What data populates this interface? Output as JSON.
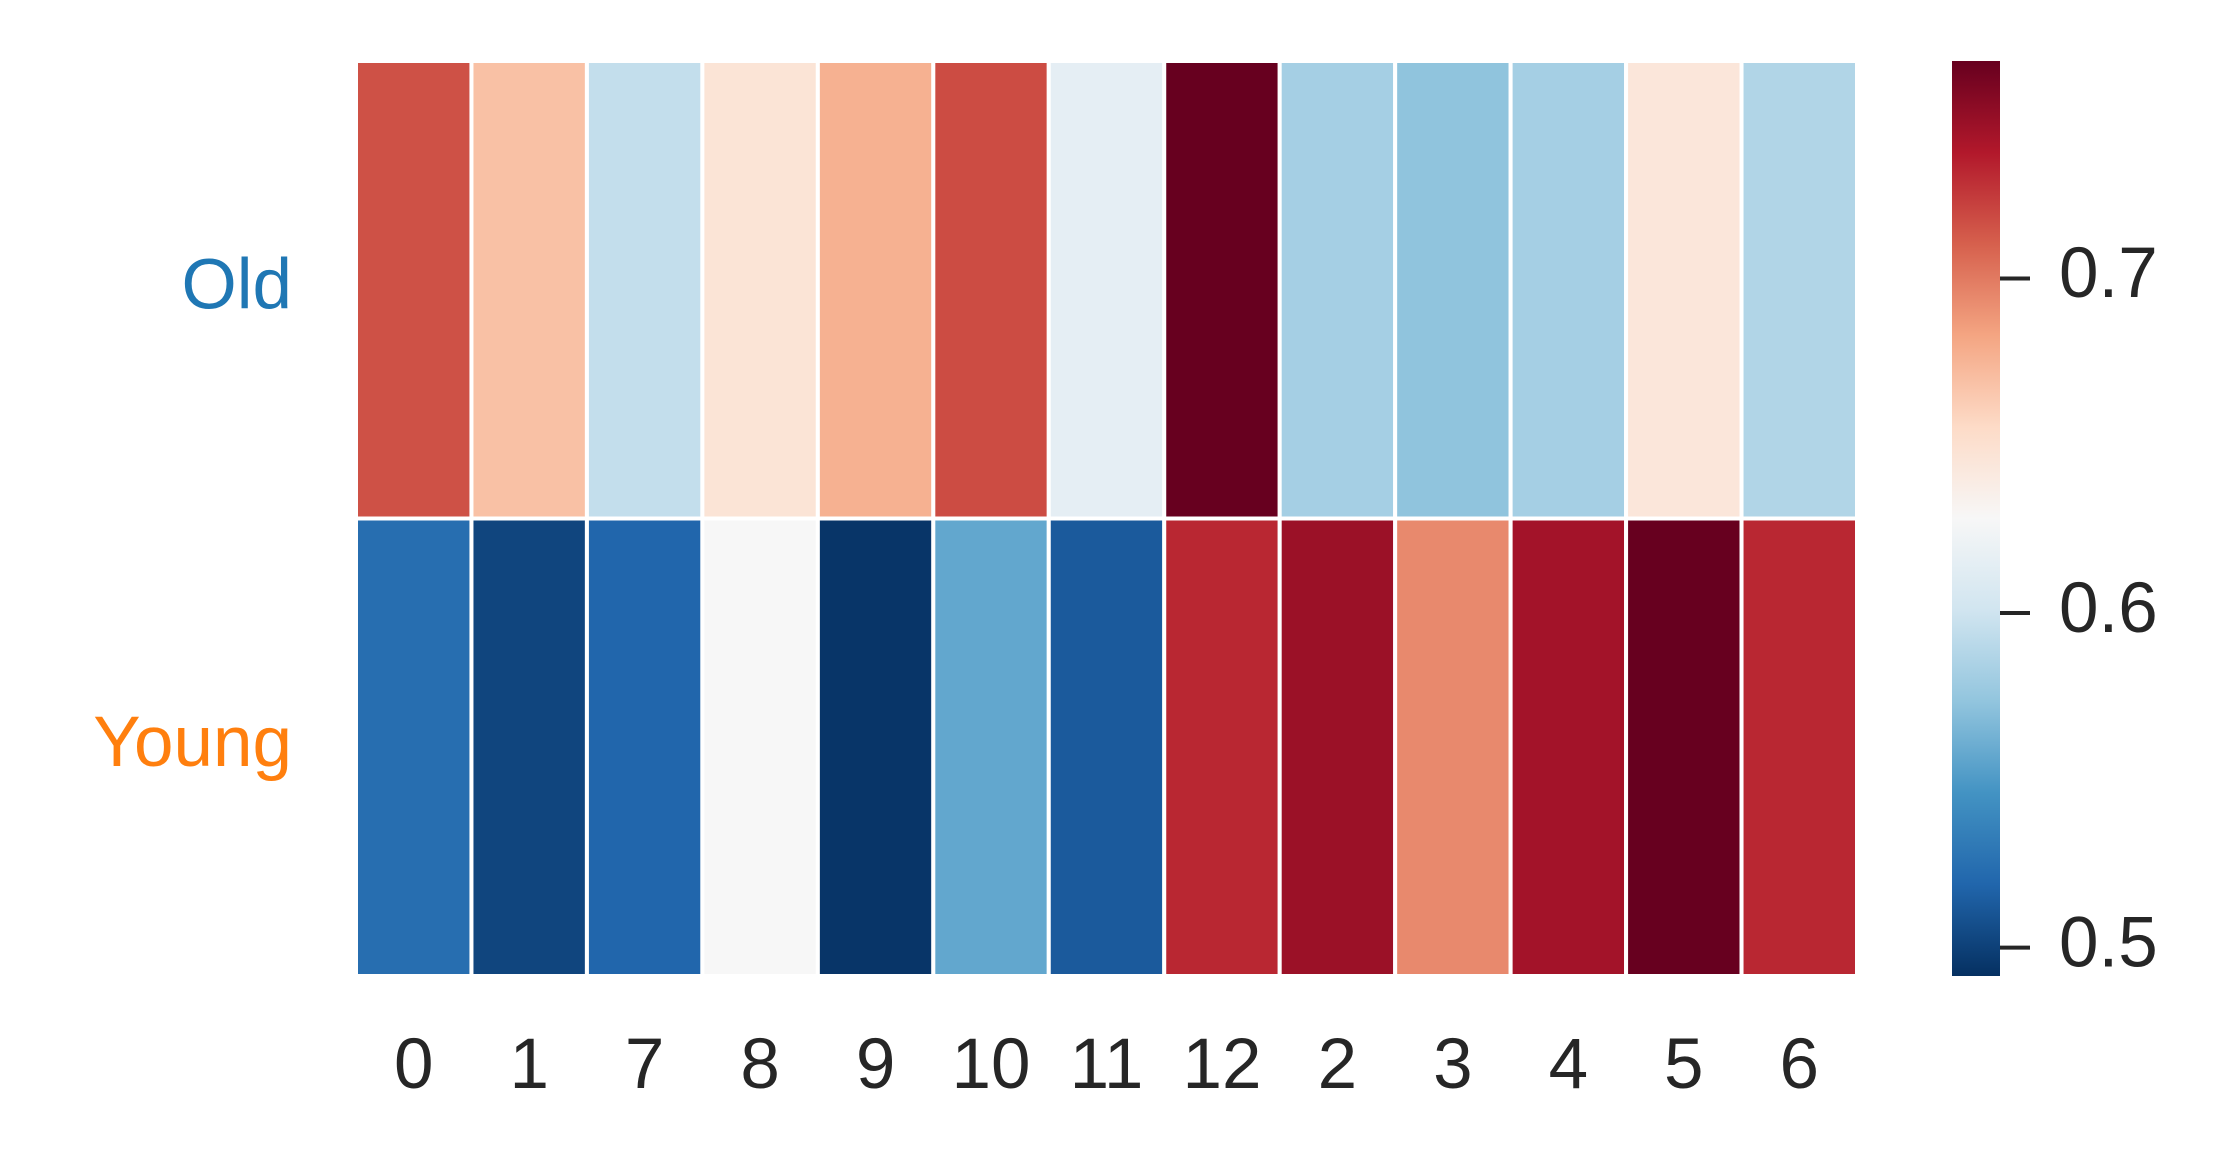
{
  "chart_data": {
    "type": "heatmap",
    "categories": [
      "0",
      "1",
      "7",
      "8",
      "9",
      "10",
      "11",
      "12",
      "2",
      "3",
      "4",
      "5",
      "6"
    ],
    "rows": [
      "Old",
      "Young"
    ],
    "row_colors": [
      "#1f77b4",
      "#ff7f0e"
    ],
    "values": [
      [
        0.716,
        0.669,
        0.595,
        0.647,
        0.677,
        0.718,
        0.615,
        0.765,
        0.582,
        0.573,
        0.582,
        0.645,
        0.587
      ],
      [
        0.524,
        0.502,
        0.519,
        0.628,
        0.494,
        0.557,
        0.513,
        0.732,
        0.746,
        0.694,
        0.743,
        0.765,
        0.732
      ]
    ],
    "colormap": "RdBu_r",
    "zlim": [
      0.4915,
      0.765
    ],
    "zticks": [
      0.5,
      0.6,
      0.7
    ]
  }
}
